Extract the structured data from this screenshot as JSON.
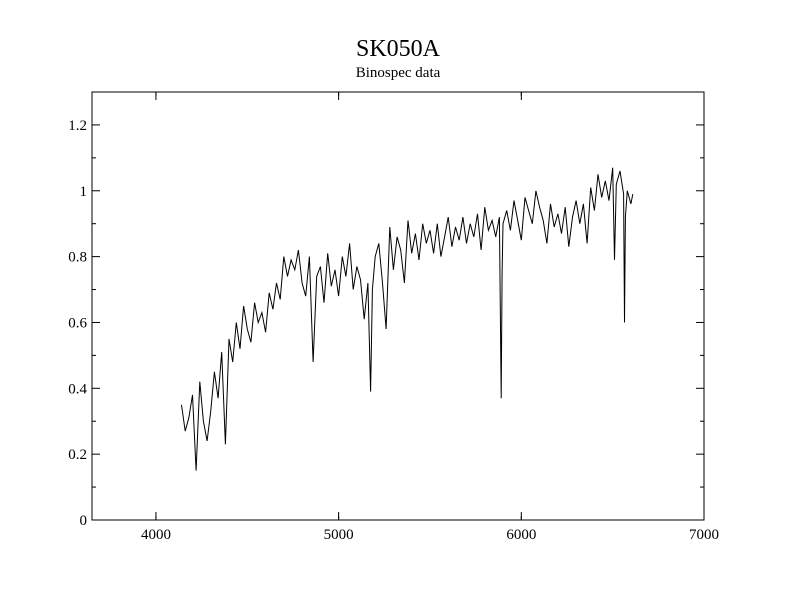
{
  "chart_data": {
    "type": "line",
    "title": "SK050A",
    "subtitle": "Binospec data",
    "xlabel": "",
    "ylabel": "",
    "xlim": [
      3650,
      7000
    ],
    "ylim": [
      0,
      1.3
    ],
    "grid": false,
    "x_ticks": [
      4000,
      5000,
      6000,
      7000
    ],
    "y_ticks": [
      0,
      0.2,
      0.4,
      0.6,
      0.8,
      1,
      1.2
    ],
    "x_tick_labels": [
      "4000",
      "5000",
      "6000",
      "7000"
    ],
    "y_tick_labels": [
      "0",
      "0.2",
      "0.4",
      "0.6",
      "0.8",
      "1",
      "1.2"
    ],
    "series": [
      {
        "color": "#000000",
        "x": [
          4140,
          4160,
          4180,
          4200,
          4220,
          4240,
          4260,
          4280,
          4300,
          4320,
          4340,
          4360,
          4380,
          4400,
          4420,
          4440,
          4460,
          4480,
          4500,
          4520,
          4540,
          4560,
          4580,
          4600,
          4620,
          4640,
          4660,
          4680,
          4700,
          4720,
          4740,
          4760,
          4780,
          4800,
          4820,
          4840,
          4860,
          4880,
          4900,
          4920,
          4940,
          4960,
          4980,
          5000,
          5020,
          5040,
          5060,
          5080,
          5100,
          5120,
          5140,
          5160,
          5175,
          5185,
          5200,
          5220,
          5240,
          5260,
          5280,
          5300,
          5320,
          5340,
          5360,
          5380,
          5400,
          5420,
          5440,
          5460,
          5480,
          5500,
          5520,
          5540,
          5560,
          5580,
          5600,
          5620,
          5640,
          5660,
          5680,
          5700,
          5720,
          5740,
          5760,
          5780,
          5800,
          5820,
          5840,
          5860,
          5880,
          5890,
          5895,
          5900,
          5920,
          5940,
          5960,
          5980,
          6000,
          6020,
          6040,
          6060,
          6080,
          6100,
          6120,
          6140,
          6160,
          6180,
          6200,
          6220,
          6240,
          6260,
          6280,
          6300,
          6320,
          6340,
          6360,
          6380,
          6400,
          6420,
          6440,
          6460,
          6480,
          6500,
          6510,
          6520,
          6540,
          6560,
          6565,
          6570,
          6580,
          6600,
          6610
        ],
        "y": [
          0.35,
          0.27,
          0.31,
          0.38,
          0.15,
          0.42,
          0.3,
          0.24,
          0.33,
          0.45,
          0.37,
          0.51,
          0.23,
          0.55,
          0.48,
          0.6,
          0.52,
          0.65,
          0.58,
          0.54,
          0.66,
          0.6,
          0.63,
          0.57,
          0.69,
          0.64,
          0.72,
          0.67,
          0.8,
          0.74,
          0.79,
          0.76,
          0.82,
          0.72,
          0.68,
          0.8,
          0.48,
          0.74,
          0.77,
          0.66,
          0.81,
          0.71,
          0.76,
          0.68,
          0.8,
          0.74,
          0.84,
          0.7,
          0.77,
          0.73,
          0.61,
          0.72,
          0.39,
          0.7,
          0.8,
          0.84,
          0.72,
          0.58,
          0.89,
          0.76,
          0.86,
          0.82,
          0.72,
          0.91,
          0.81,
          0.87,
          0.79,
          0.9,
          0.84,
          0.88,
          0.81,
          0.9,
          0.8,
          0.86,
          0.92,
          0.83,
          0.89,
          0.85,
          0.92,
          0.84,
          0.9,
          0.86,
          0.93,
          0.82,
          0.95,
          0.88,
          0.91,
          0.86,
          0.92,
          0.37,
          0.75,
          0.9,
          0.94,
          0.88,
          0.97,
          0.91,
          0.85,
          0.98,
          0.94,
          0.9,
          1.0,
          0.95,
          0.91,
          0.84,
          0.96,
          0.89,
          0.93,
          0.87,
          0.95,
          0.83,
          0.92,
          0.97,
          0.9,
          0.96,
          0.84,
          1.01,
          0.94,
          1.05,
          0.98,
          1.03,
          0.97,
          1.07,
          0.79,
          1.02,
          1.06,
          0.99,
          0.6,
          0.92,
          1.0,
          0.96,
          0.99
        ]
      }
    ]
  }
}
